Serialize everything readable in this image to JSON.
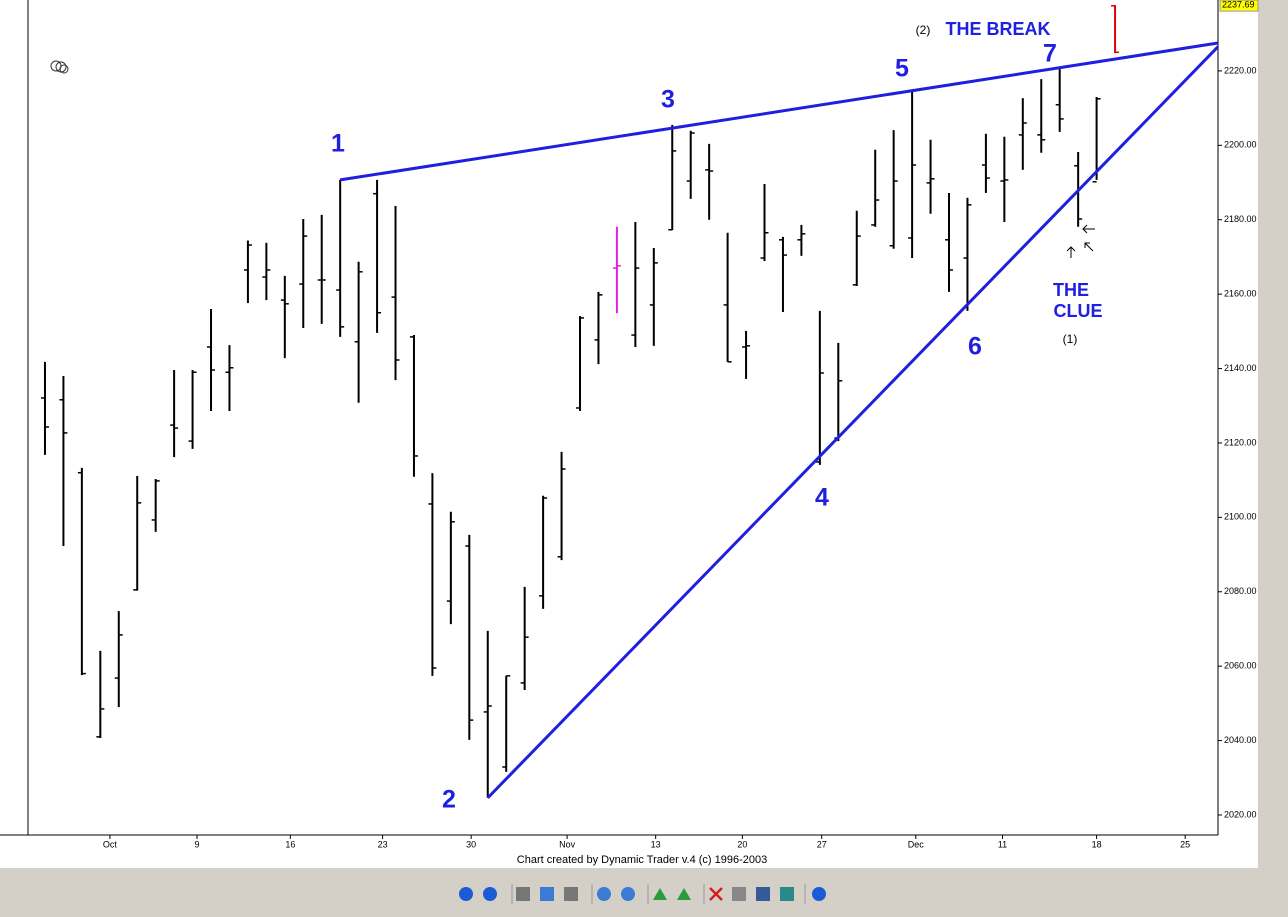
{
  "chart_data": {
    "type": "ohlc",
    "x": [
      0,
      1,
      2,
      3,
      4,
      5,
      6,
      7,
      8,
      9,
      10,
      11,
      12,
      13,
      14,
      15,
      16,
      17,
      18,
      19,
      20,
      21,
      22,
      23,
      24,
      25,
      26,
      27,
      28,
      29,
      30,
      31,
      32,
      33,
      34,
      35,
      36,
      37,
      38,
      39,
      40,
      41,
      42,
      43,
      44,
      45,
      46,
      47,
      48,
      49,
      50,
      51,
      52,
      53,
      54,
      55,
      56,
      57,
      58
    ],
    "open": [
      2132.1,
      2131.6,
      2112,
      2041,
      2056.8,
      2080.5,
      2099.3,
      2124.8,
      2120.5,
      2145.8,
      2139,
      2166.5,
      2164.6,
      2158.4,
      2162.7,
      2163.8,
      2161.1,
      2147.2,
      2187,
      2159.2,
      2148.5,
      2103.6,
      2077.5,
      2092.3,
      2047.7,
      2032.9,
      2055.5,
      2078.9,
      2089.4,
      2129.4,
      2147.7,
      2167,
      2149,
      2157.1,
      2177.3,
      2190.4,
      2193.4,
      2157.1,
      2145.8,
      2169.7,
      2174.6,
      2174.6,
      2114.9,
      2121.3,
      2162.5,
      2178.6,
      2173,
      2175.1,
      2189.9,
      2174.6,
      2169.7,
      2194.7,
      2190.4,
      2202.8,
      2202.8,
      2210.9,
      2194.5,
      2190.2,
      2237.5
    ],
    "high": [
      2141.8,
      2138,
      2113.3,
      2064.1,
      2074.8,
      2111.1,
      2110.3,
      2139.6,
      2139.6,
      2156,
      2146.3,
      2174.4,
      2173.8,
      2164.9,
      2180.2,
      2181.3,
      2190.7,
      2168.7,
      2190.7,
      2183.7,
      2149,
      2111.9,
      2101.5,
      2095.3,
      2069.5,
      2057.4,
      2081.3,
      2105.8,
      2117.6,
      2154.1,
      2160.6,
      2178.1,
      2179.4,
      2172.4,
      2205.5,
      2203.9,
      2200.4,
      2176.5,
      2150.1,
      2189.6,
      2175.4,
      2178.6,
      2155.5,
      2146.9,
      2182.4,
      2198.8,
      2204.1,
      2214.6,
      2201.5,
      2187.2,
      2185.9,
      2203.1,
      2202.3,
      2212.7,
      2217.8,
      2220.5,
      2198.2,
      2213,
      2237.7
    ],
    "low": [
      2116.8,
      2092.3,
      2057.6,
      2040.7,
      2049,
      2080.3,
      2096.1,
      2116.2,
      2118.4,
      2128.6,
      2128.6,
      2157.6,
      2158.4,
      2142.8,
      2150.9,
      2152,
      2148.5,
      2130.8,
      2149.6,
      2136.9,
      2110.9,
      2057.4,
      2071.3,
      2040.2,
      2024.6,
      2031.6,
      2053.6,
      2075.4,
      2088.5,
      2128.6,
      2141.2,
      2154.9,
      2145.8,
      2146.1,
      2177.2,
      2185.6,
      2180,
      2141.8,
      2137.2,
      2168.9,
      2155.2,
      2170.3,
      2114.1,
      2120.5,
      2162.2,
      2178.1,
      2172.2,
      2169.7,
      2181.6,
      2160.6,
      2155.5,
      2187.2,
      2179.4,
      2193.4,
      2198,
      2203.6,
      2178.1,
      2190.7,
      2224.8
    ],
    "close": [
      2124.3,
      2122.7,
      2058,
      2048.5,
      2068.4,
      2103.9,
      2109.8,
      2124,
      2139,
      2139.6,
      2140.2,
      2173.2,
      2166.5,
      2157.4,
      2175.6,
      2163.8,
      2151.2,
      2166,
      2155,
      2142.3,
      2116.5,
      2059.5,
      2098.8,
      2045.5,
      2049.3,
      2057.4,
      2067.8,
      2105.2,
      2113,
      2153.6,
      2159.8,
      2167.6,
      2167,
      2168.4,
      2198.5,
      2203.3,
      2193.1,
      2141.8,
      2146.1,
      2176.5,
      2170.5,
      2176.2,
      2138.8,
      2136.7,
      2175.6,
      2185.3,
      2190.4,
      2194.7,
      2191,
      2166.5,
      2184,
      2191.2,
      2190.7,
      2206,
      2201.5,
      2207.1,
      2180.2,
      2212.5,
      2225
    ],
    "colors": [
      "#000000",
      "#000000",
      "#000000",
      "#000000",
      "#000000",
      "#000000",
      "#000000",
      "#000000",
      "#000000",
      "#000000",
      "#000000",
      "#000000",
      "#000000",
      "#000000",
      "#000000",
      "#000000",
      "#000000",
      "#000000",
      "#000000",
      "#000000",
      "#000000",
      "#000000",
      "#000000",
      "#000000",
      "#000000",
      "#000000",
      "#000000",
      "#000000",
      "#000000",
      "#000000",
      "#000000",
      "#e020e0",
      "#000000",
      "#000000",
      "#000000",
      "#000000",
      "#000000",
      "#000000",
      "#000000",
      "#000000",
      "#000000",
      "#000000",
      "#000000",
      "#000000",
      "#000000",
      "#000000",
      "#000000",
      "#000000",
      "#000000",
      "#000000",
      "#000000",
      "#000000",
      "#000000",
      "#000000",
      "#000000",
      "#000000",
      "#000000",
      "#000000",
      "#dd0000"
    ],
    "xlim": [
      -0.92,
      63.58
    ],
    "ylim": [
      2014.62,
      2239.06
    ],
    "xticks": [
      {
        "value": 3.52,
        "label": "Oct"
      },
      {
        "value": 8.24,
        "label": "9"
      },
      {
        "value": 13.3,
        "label": "16"
      },
      {
        "value": 18.3,
        "label": "23"
      },
      {
        "value": 23.1,
        "label": "30"
      },
      {
        "value": 28.3,
        "label": "Nov"
      },
      {
        "value": 33.1,
        "label": "13"
      },
      {
        "value": 37.8,
        "label": "20"
      },
      {
        "value": 42.1,
        "label": "27"
      },
      {
        "value": 47.2,
        "label": "Dec"
      },
      {
        "value": 51.9,
        "label": "11"
      },
      {
        "value": 57.0,
        "label": "18"
      },
      {
        "value": 61.8,
        "label": "25"
      }
    ],
    "yticks": [
      {
        "value": 2020,
        "label": "2020.00"
      },
      {
        "value": 2040,
        "label": "2040.00"
      },
      {
        "value": 2060,
        "label": "2060.00"
      },
      {
        "value": 2080,
        "label": "2080.00"
      },
      {
        "value": 2100,
        "label": "2100.00"
      },
      {
        "value": 2120,
        "label": "2120.00"
      },
      {
        "value": 2140,
        "label": "2140.00"
      },
      {
        "value": 2160,
        "label": "2160.00"
      },
      {
        "value": 2180,
        "label": "2180.00"
      },
      {
        "value": 2200,
        "label": "2200.00"
      },
      {
        "value": 2220,
        "label": "2220.00"
      }
    ],
    "last_price": 2237.69,
    "trendlines": [
      {
        "color": "#1f1fe0",
        "x": [
          16,
          63.58
        ],
        "y": [
          2190.7,
          2227.5
        ]
      },
      {
        "color": "#1f1fe0",
        "x": [
          24,
          63.58
        ],
        "y": [
          2024.6,
          2226.5
        ]
      }
    ],
    "wave_labels": [
      "1",
      "2",
      "3",
      "4",
      "5",
      "6",
      "7"
    ],
    "annotations": [
      "(2)",
      "THE BREAK",
      "THE",
      "CLUE",
      "(1)"
    ],
    "credit": "Chart created by Dynamic Trader v.4  (c) 1996-2003"
  }
}
